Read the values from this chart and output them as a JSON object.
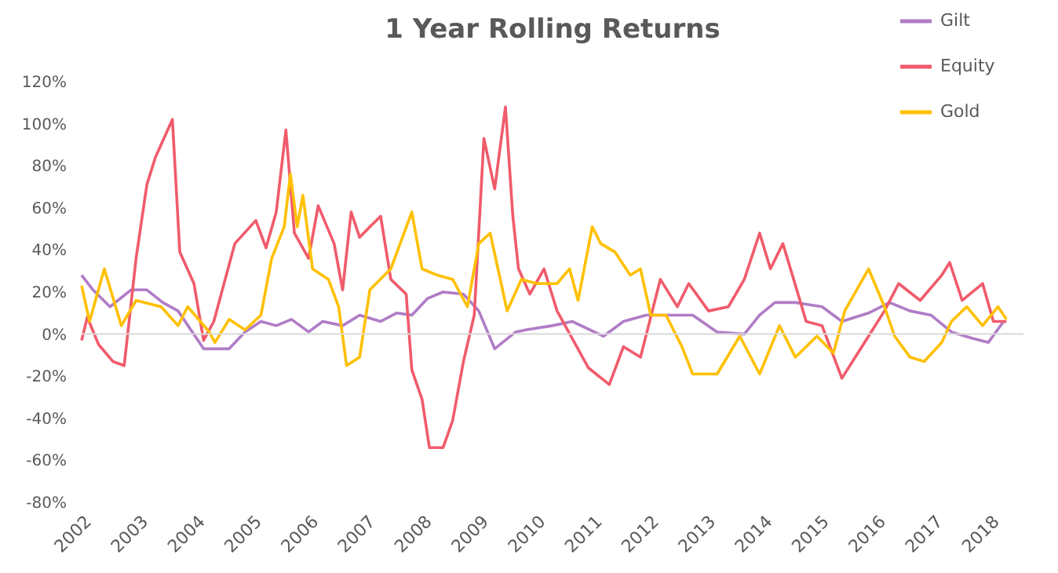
{
  "chart_data": {
    "type": "line",
    "title": "1 Year Rolling Returns",
    "xlim": [
      2002,
      2018.6
    ],
    "xticks": [
      2002,
      2003,
      2004,
      2005,
      2006,
      2007,
      2008,
      2009,
      2010,
      2011,
      2012,
      2013,
      2014,
      2015,
      2016,
      2017,
      2018
    ],
    "ylim": [
      -80,
      120
    ],
    "yticks": [
      {
        "value": -80,
        "label": "-80%"
      },
      {
        "value": -60,
        "label": "-60%"
      },
      {
        "value": -40,
        "label": "-40%"
      },
      {
        "value": -20,
        "label": "-20%"
      },
      {
        "value": 0,
        "label": "0%"
      },
      {
        "value": 20,
        "label": "20%"
      },
      {
        "value": 40,
        "label": "40%"
      },
      {
        "value": 60,
        "label": "60%"
      },
      {
        "value": 80,
        "label": "80%"
      },
      {
        "value": 100,
        "label": "100%"
      },
      {
        "value": 120,
        "label": "120%"
      }
    ],
    "legend": "top right",
    "ref_lines": [
      {
        "axis": "y",
        "value": 0,
        "label": null,
        "color": "#d9d9d9"
      }
    ],
    "series": [
      {
        "name": "Gilt",
        "color": "#b07cc6",
        "x": [
          2002.0,
          2002.2,
          2002.5,
          2002.87,
          2003.15,
          2003.43,
          2003.7,
          2004.15,
          2004.6,
          2004.88,
          2005.16,
          2005.43,
          2005.7,
          2006.0,
          2006.25,
          2006.6,
          2006.9,
          2007.27,
          2007.55,
          2007.82,
          2008.1,
          2008.37,
          2008.73,
          2009.0,
          2009.28,
          2009.65,
          2009.83,
          2010.3,
          2010.65,
          2011.2,
          2011.55,
          2011.95,
          2012.3,
          2012.77,
          2013.2,
          2013.68,
          2013.95,
          2014.22,
          2014.58,
          2015.05,
          2015.4,
          2015.87,
          2016.24,
          2016.6,
          2016.97,
          2017.33,
          2017.7,
          2017.98,
          2018.25
        ],
        "values": [
          28,
          21,
          13,
          21,
          21,
          15,
          11,
          -7,
          -7,
          1,
          6,
          4,
          7,
          1,
          6,
          4,
          9,
          6,
          10,
          9,
          17,
          20,
          19,
          11,
          -7,
          1,
          2,
          4,
          6,
          -1,
          6,
          9,
          9,
          9,
          1,
          0,
          9,
          15,
          15,
          13,
          6,
          10,
          15,
          11,
          9,
          1,
          -2,
          -4,
          6
        ]
      },
      {
        "name": "Equity",
        "color": "#f05b6b",
        "x": [
          2002.0,
          2002.1,
          2002.3,
          2002.55,
          2002.75,
          2002.96,
          2003.15,
          2003.3,
          2003.6,
          2003.73,
          2003.98,
          2004.15,
          2004.33,
          2004.7,
          2005.07,
          2005.25,
          2005.43,
          2005.6,
          2005.75,
          2006.0,
          2006.17,
          2006.45,
          2006.6,
          2006.75,
          2006.9,
          2007.08,
          2007.27,
          2007.45,
          2007.72,
          2007.82,
          2008.0,
          2008.13,
          2008.37,
          2008.54,
          2008.73,
          2008.92,
          2009.09,
          2009.28,
          2009.47,
          2009.6,
          2009.7,
          2009.9,
          2010.15,
          2010.38,
          2010.93,
          2011.3,
          2011.55,
          2011.85,
          2012.2,
          2012.5,
          2012.7,
          2013.05,
          2013.4,
          2013.68,
          2013.95,
          2014.14,
          2014.36,
          2014.55,
          2014.77,
          2015.05,
          2015.4,
          2015.8,
          2016.15,
          2016.4,
          2016.78,
          2017.16,
          2017.3,
          2017.52,
          2017.88,
          2018.07,
          2018.3
        ],
        "values": [
          -3,
          8,
          -5,
          -13,
          -15,
          36,
          71,
          84,
          102,
          39,
          24,
          -3,
          6,
          43,
          54,
          41,
          58,
          97,
          48,
          36,
          61,
          43,
          21,
          58,
          46,
          51,
          56,
          26,
          19,
          -17,
          -31,
          -54,
          -54,
          -41,
          -13,
          9,
          93,
          69,
          108,
          56,
          31,
          19,
          31,
          11,
          -16,
          -24,
          -6,
          -11,
          26,
          13,
          24,
          11,
          13,
          26,
          48,
          31,
          43,
          26,
          6,
          4,
          -21,
          -4,
          11,
          24,
          16,
          28,
          34,
          16,
          24,
          6,
          6
        ]
      },
      {
        "name": "Gold",
        "color": "#ffc000",
        "x": [
          2002.0,
          2002.14,
          2002.4,
          2002.7,
          2002.96,
          2003.4,
          2003.7,
          2003.87,
          2004.25,
          2004.35,
          2004.6,
          2004.88,
          2005.16,
          2005.35,
          2005.57,
          2005.68,
          2005.8,
          2005.9,
          2006.07,
          2006.35,
          2006.53,
          2006.67,
          2006.9,
          2007.08,
          2007.45,
          2007.82,
          2008.0,
          2008.27,
          2008.54,
          2008.8,
          2009.0,
          2009.2,
          2009.5,
          2009.75,
          2010.02,
          2010.38,
          2010.6,
          2010.75,
          2011.0,
          2011.15,
          2011.4,
          2011.67,
          2011.85,
          2012.03,
          2012.3,
          2012.58,
          2012.77,
          2013.2,
          2013.6,
          2013.95,
          2014.3,
          2014.58,
          2014.96,
          2015.25,
          2015.45,
          2015.87,
          2016.15,
          2016.33,
          2016.6,
          2016.85,
          2017.16,
          2017.33,
          2017.6,
          2017.88,
          2018.15,
          2018.3
        ],
        "values": [
          23,
          6,
          31,
          4,
          16,
          13,
          4,
          13,
          1,
          -4,
          7,
          2,
          9,
          36,
          51,
          76,
          51,
          66,
          31,
          26,
          13,
          -15,
          -11,
          21,
          31,
          58,
          31,
          28,
          26,
          13,
          43,
          48,
          11,
          26,
          24,
          24,
          31,
          16,
          51,
          43,
          39,
          28,
          31,
          9,
          9,
          -6,
          -19,
          -19,
          -1,
          -19,
          4,
          -11,
          -1,
          -9,
          11,
          31,
          13,
          -1,
          -11,
          -13,
          -4,
          6,
          13,
          4,
          13,
          7
        ]
      }
    ]
  }
}
